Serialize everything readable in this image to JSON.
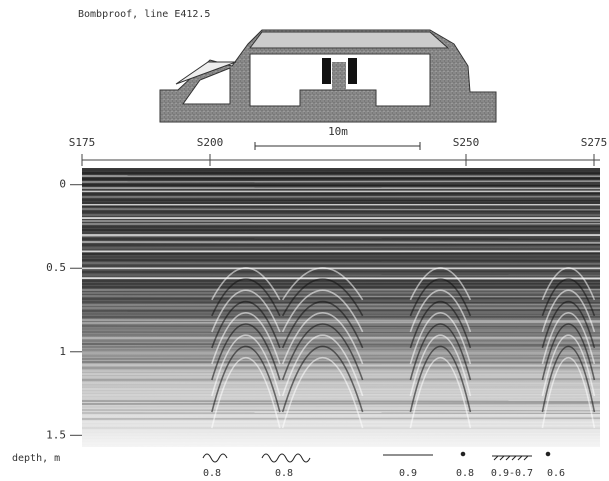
{
  "chart_data": {
    "type": "radargram",
    "title": "Bombproof, line E412.5",
    "scale_label": "10m",
    "y_label": "depth, m",
    "xlim": [
      175,
      275
    ],
    "xticks": [
      {
        "value": 175,
        "label": "S175"
      },
      {
        "value": 200,
        "label": "S200"
      },
      {
        "value": 250,
        "label": "S250"
      },
      {
        "value": 275,
        "label": "S275"
      }
    ],
    "ylim": [
      -0.1,
      1.57
    ],
    "yticks": [
      0,
      0.5,
      1,
      1.5
    ],
    "annotations": [
      "0.8",
      "0.8",
      "0.9",
      "0.8",
      "0.9-0.7",
      "0.6"
    ]
  }
}
